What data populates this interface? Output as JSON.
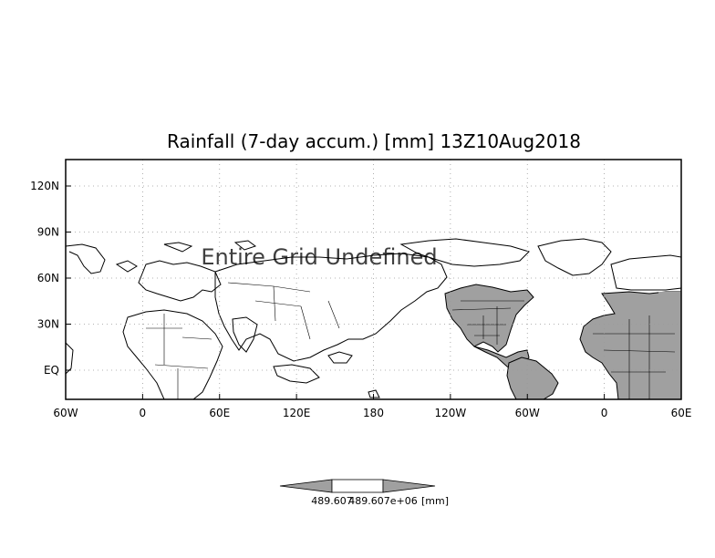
{
  "chart_data": {
    "type": "map",
    "title": "Rainfall (7-day accum.) [mm] 13Z10Aug2018",
    "overlay_text": "Entire Grid Undefined",
    "x_ticks": [
      "60W",
      "0",
      "60E",
      "120E",
      "180",
      "120W",
      "60W",
      "0",
      "60E"
    ],
    "y_ticks": [
      "120N",
      "90N",
      "60N",
      "30N",
      "EQ"
    ],
    "grid": true,
    "colorbar": {
      "min_label": "489.607",
      "max_label": "489.607e+06",
      "unit": "[mm]",
      "colors": [
        "#a0a0a0",
        "#ffffff",
        "#a0a0a0"
      ]
    },
    "colors": {
      "land_fill": "#a0a0a0",
      "coastline": "#000000",
      "grid": "#9a9a9a"
    }
  }
}
